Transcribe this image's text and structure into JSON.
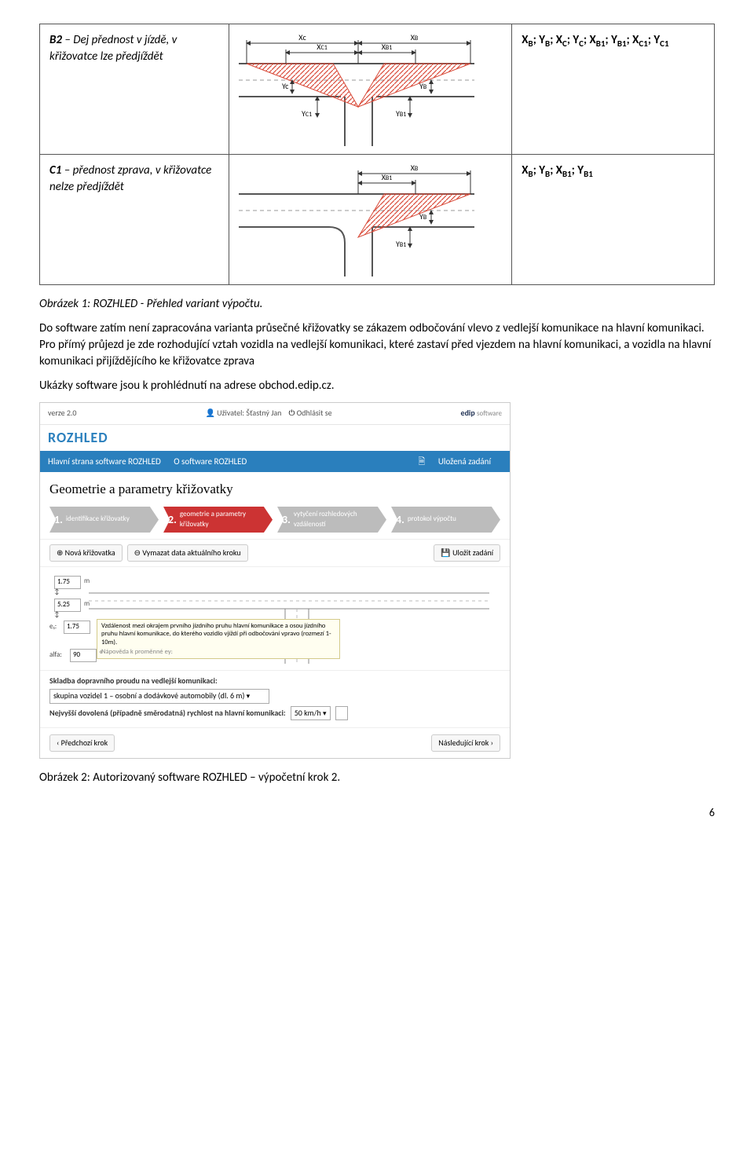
{
  "rows": [
    {
      "col1_b": "B2",
      "col1_t": " – Dej přednost v jízdě, v křižovatce lze předjíždět",
      "col3": "X_B; Y_B; X_C; Y_C; X_B1; Y_B1; X_C1; Y_C1",
      "diag": "b2"
    },
    {
      "col1_b": "C1",
      "col1_t": " – přednost zprava, v křižovatce nelze předjíždět",
      "col3": "X_B; Y_B; X_B1; Y_B1",
      "diag": "c1"
    }
  ],
  "caption1": "Obrázek 1: ROZHLED - Přehled variant výpočtu.",
  "para1": "Do software zatím není zapracována varianta průsečné křižovatky se zákazem odbočování vlevo z vedlejší komunikace na hlavní komunikaci. Pro přímý průjezd je zde rozhodující vztah vozidla na vedlejší komunikaci, které zastaví před vjezdem na hlavní komunikaci, a vozidla na hlavní komunikaci přijíždějícího ke křižovatce zprava",
  "para2": "Ukázky software jsou k prohlédnutí na adrese obchod.edip.cz.",
  "caption2": "Obrázek 2: Autorizovaný software ROZHLED – výpočetní krok 2.",
  "pagenum": "6",
  "diagColors": {
    "road": "#5b5b5b",
    "hatch": "#d94b3a",
    "arrow": "#333333",
    "dim": "#333333",
    "bg": "#ffffff"
  },
  "screenshot": {
    "ver": "verze 2.0",
    "user": "Uživatel: Šťastný Jan",
    "logout": "Odhlásit se",
    "brandR": "ROZHLED",
    "brandE": "edip",
    "brandEs": "software",
    "nav1": "Hlavní strana software ROZHLED",
    "nav2": "O software ROZHLED",
    "nav3": "Uložená zadání",
    "title": "Geometrie a parametry křižovatky",
    "steps": [
      {
        "n": "1.",
        "t": "identifikace křižovatky"
      },
      {
        "n": "2.",
        "t": "geometrie a parametry křižovatky"
      },
      {
        "n": "3.",
        "t": "vytyčení rozhledových vzdáleností"
      },
      {
        "n": "4.",
        "t": "protokol výpočtu"
      }
    ],
    "btnNew": "Nová křižovatka",
    "btnClear": "Vymazat data aktuálního kroku",
    "btnSave": "Uložit zadání",
    "v1": "1.75",
    "u": "m",
    "v2": "5.25",
    "v3": "1.75",
    "tip": "Vzdálenost mezi okrajem prvního jízdního pruhu hlavní komunikace a osou jízdního pruhu hlavní komunikace, do kterého vozidlo vjíždí při odbočování vpravo (rozmezí 1-10m).",
    "tip2": "Nápověda k proměnné ey:",
    "e1l": "e₁:",
    "e1v": "1.75",
    "alfa": "alfa:",
    "alfaV": "90",
    "deg": "°",
    "skl": "Skladba dopravního proudu na vedlejší komunikaci:",
    "sklSel": "skupina vozidel 1 – osobní a dodávkové automobily (dl. 6 m)",
    "ryT": "Nejvyšší dovolená (případně směrodatná) rychlost na hlavní komunikaci:",
    "ryV": "50 km/h",
    "prev": "Předchozí krok",
    "next": "Následující krok",
    "icons": {
      "user": "👤",
      "logout": "⏻",
      "plus": "⊕",
      "erase": "⊖",
      "save": "💾",
      "left": "‹",
      "right": "›",
      "saved": "🗎"
    }
  }
}
